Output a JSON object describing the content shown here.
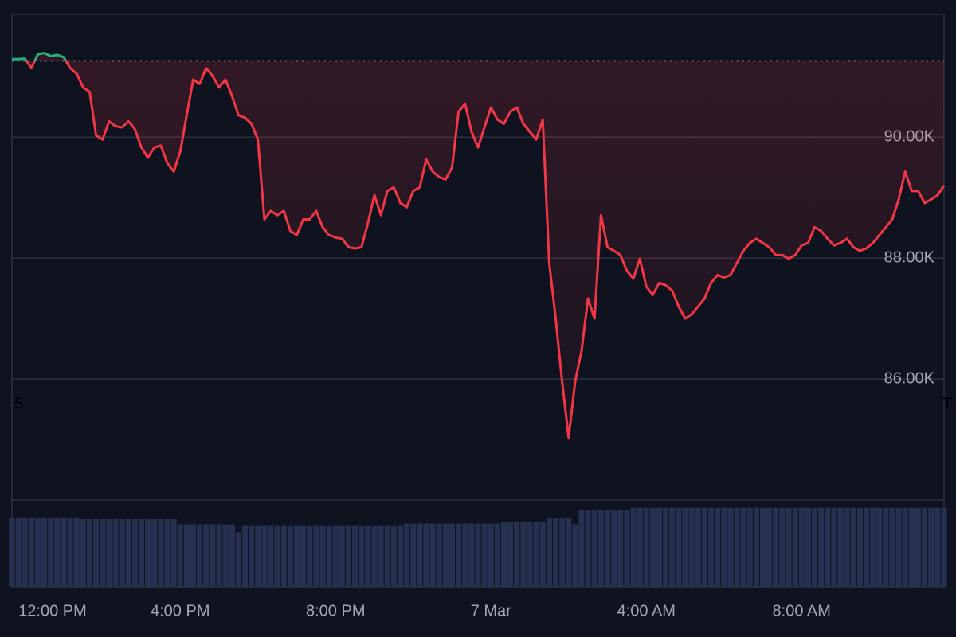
{
  "chart_data": {
    "type": "line",
    "categories": [
      null,
      null,
      "12:00 PM",
      null,
      null,
      null,
      null,
      null,
      null,
      null,
      null,
      null,
      null,
      null,
      null,
      null,
      null,
      null,
      null,
      null,
      null,
      null,
      null,
      null,
      null,
      null,
      "4:00 PM",
      null,
      null,
      null,
      null,
      null,
      null,
      null,
      null,
      null,
      null,
      null,
      null,
      null,
      null,
      null,
      null,
      null,
      null,
      null,
      null,
      null,
      null,
      null,
      "8:00 PM",
      null,
      null,
      null,
      null,
      null,
      null,
      null,
      null,
      null,
      null,
      null,
      null,
      null,
      null,
      null,
      null,
      null,
      null,
      null,
      null,
      null,
      null,
      null,
      "7 Mar",
      null,
      null,
      null,
      null,
      null,
      null,
      null,
      null,
      null,
      null,
      null,
      null,
      null,
      null,
      null,
      null,
      null,
      null,
      null,
      null,
      null,
      null,
      null,
      "4:00 AM",
      null,
      null,
      null,
      null,
      null,
      null,
      null,
      null,
      null,
      null,
      null,
      null,
      null,
      null,
      null,
      null,
      null,
      null,
      null,
      null,
      null,
      null,
      null,
      "8:00 AM",
      null,
      null,
      null,
      null,
      null,
      null,
      null,
      null,
      null,
      null,
      null,
      null,
      null,
      null,
      null,
      null,
      null,
      null,
      null,
      null,
      null,
      null
    ],
    "series": [
      {
        "color": "#f23645",
        "up_color": "#26b07d",
        "values": [
          91290,
          91290,
          91300,
          91140,
          91370,
          91390,
          91340,
          91360,
          91320,
          91140,
          91050,
          90820,
          90750,
          90030,
          89960,
          90260,
          90180,
          90160,
          90260,
          90130,
          89830,
          89660,
          89830,
          89860,
          89570,
          89430,
          89760,
          90360,
          90950,
          90880,
          91140,
          91010,
          90820,
          90950,
          90680,
          90360,
          90320,
          90220,
          89960,
          88640,
          88780,
          88710,
          88780,
          88450,
          88380,
          88640,
          88640,
          88780,
          88510,
          88380,
          88340,
          88320,
          88180,
          88160,
          88180,
          88580,
          89040,
          88710,
          89110,
          89170,
          88910,
          88840,
          89110,
          89170,
          89630,
          89430,
          89340,
          89300,
          89500,
          90420,
          90550,
          90090,
          89830,
          90160,
          90490,
          90290,
          90220,
          90420,
          90490,
          90220,
          90090,
          89960,
          90290,
          87920,
          87000,
          85950,
          85030,
          85950,
          86470,
          87330,
          87000,
          88710,
          88180,
          88120,
          88050,
          87790,
          87660,
          87990,
          87530,
          87390,
          87590,
          87550,
          87460,
          87200,
          87000,
          87070,
          87200,
          87330,
          87590,
          87720,
          87680,
          87720,
          87920,
          88120,
          88250,
          88320,
          88250,
          88180,
          88050,
          88050,
          87990,
          88050,
          88210,
          88250,
          88510,
          88450,
          88320,
          88210,
          88250,
          88320,
          88180,
          88120,
          88160,
          88250,
          88380,
          88510,
          88640,
          88970,
          89430,
          89110,
          89110,
          88910,
          88970,
          89040,
          89200
        ]
      }
    ],
    "baseline": 91260,
    "ylim": [
      84000,
      92030
    ],
    "yticks": [
      {
        "value": 86000,
        "label": "86.00K"
      },
      {
        "value": 88000,
        "label": "88.00K"
      },
      {
        "value": 90000,
        "label": "90.00K"
      }
    ],
    "grid": true,
    "volume": {
      "color": "#263152",
      "ylim": [
        0,
        100
      ],
      "values": [
        80,
        80,
        80,
        80,
        80,
        80,
        80,
        80,
        80,
        80,
        80,
        78,
        78,
        78,
        78,
        78,
        78,
        78,
        78,
        78,
        78,
        78,
        78,
        78,
        78,
        78,
        72,
        72,
        72,
        72,
        72,
        72,
        72,
        72,
        72,
        63,
        71,
        71,
        71,
        71,
        71,
        71,
        71,
        71,
        71,
        71,
        71,
        71,
        71,
        71,
        71,
        71,
        71,
        71,
        71,
        71,
        71,
        71,
        71,
        71,
        71,
        73,
        73,
        73,
        73,
        73,
        73,
        73,
        73,
        73,
        73,
        73,
        73,
        73,
        73,
        73,
        75,
        75,
        75,
        75,
        75,
        75,
        75,
        79,
        79,
        79,
        79,
        72,
        88,
        88,
        88,
        88,
        88,
        88,
        88,
        88,
        91,
        91,
        91,
        91,
        91,
        91,
        91,
        91,
        91,
        91,
        91,
        91,
        91,
        91,
        91,
        91,
        91,
        91,
        91,
        91,
        91,
        91,
        91,
        91,
        91,
        91,
        91,
        91,
        91,
        91,
        91,
        91,
        91,
        91,
        91,
        91,
        91,
        91,
        91,
        91,
        91,
        91,
        91,
        91,
        91,
        91,
        91,
        91,
        91
      ]
    },
    "edge_labels": [
      "5",
      "T"
    ]
  }
}
